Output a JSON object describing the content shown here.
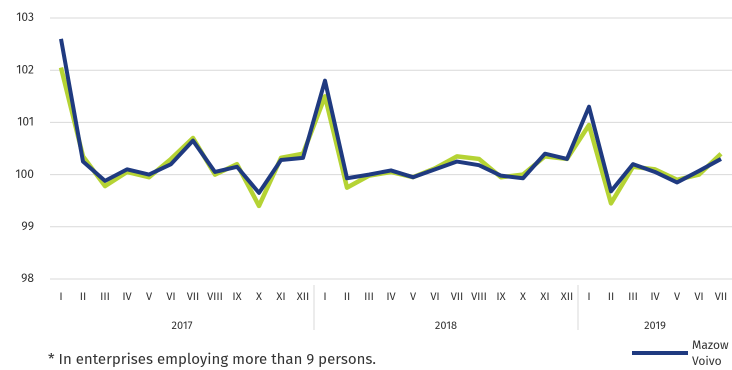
{
  "chart_data": {
    "type": "line",
    "groups": [
      {
        "label": "2017",
        "size": 12
      },
      {
        "label": "2018",
        "size": 12
      },
      {
        "label": "2019",
        "size": 7
      }
    ],
    "categories": [
      "I",
      "II",
      "III",
      "IV",
      "V",
      "VI",
      "VII",
      "VIII",
      "IX",
      "X",
      "XI",
      "XII",
      "I",
      "II",
      "III",
      "IV",
      "V",
      "VI",
      "VII",
      "VIII",
      "IX",
      "X",
      "XI",
      "XII",
      "I",
      "II",
      "III",
      "IV",
      "V",
      "VI",
      "VII"
    ],
    "series": [
      {
        "color": "#b5d334",
        "values": [
          102.05,
          100.35,
          99.78,
          100.05,
          99.95,
          100.3,
          100.7,
          100.0,
          100.2,
          99.4,
          100.32,
          100.4,
          101.5,
          99.75,
          99.98,
          100.05,
          99.95,
          100.12,
          100.35,
          100.3,
          99.95,
          100.0,
          100.35,
          100.3,
          100.95,
          99.45,
          100.15,
          100.1,
          99.9,
          100.0,
          100.4
        ]
      },
      {
        "color": "#1f3a80",
        "values": [
          102.6,
          100.25,
          99.88,
          100.1,
          100.0,
          100.2,
          100.65,
          100.05,
          100.15,
          99.65,
          100.28,
          100.32,
          101.8,
          99.93,
          100.0,
          100.08,
          99.95,
          100.1,
          100.25,
          100.18,
          99.98,
          99.93,
          100.4,
          100.3,
          101.3,
          99.68,
          100.2,
          100.05,
          99.85,
          100.07,
          100.3
        ]
      }
    ],
    "legend": {
      "series": 1,
      "lines": [
        "Mazow",
        "Voivo"
      ]
    },
    "ylim": [
      98,
      103
    ],
    "yticks": [
      98,
      99,
      100,
      101,
      102,
      103
    ],
    "grid": true,
    "footnote": "* In enterprises employing more than 9 persons."
  }
}
